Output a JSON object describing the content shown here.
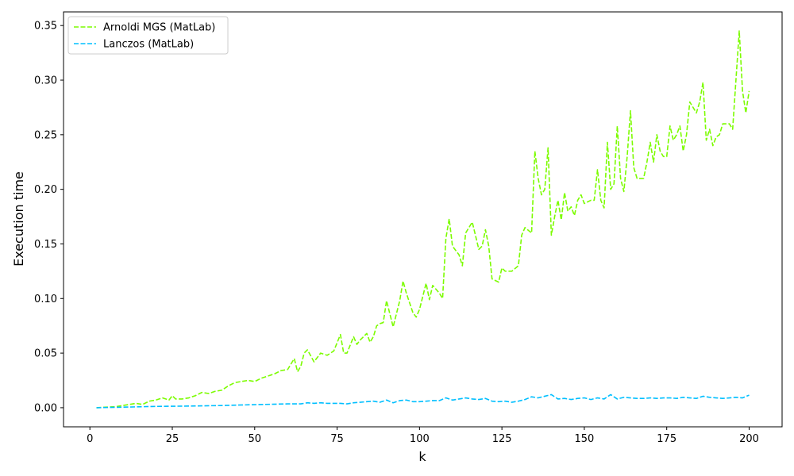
{
  "chart_data": {
    "type": "line",
    "title": "",
    "xlabel": "k",
    "ylabel": "Execution time",
    "xlim": [
      -8,
      210
    ],
    "ylim": [
      -0.0175,
      0.3625
    ],
    "xticks": [
      0,
      25,
      50,
      75,
      100,
      125,
      150,
      175,
      200
    ],
    "xtick_labels": [
      "0",
      "25",
      "50",
      "75",
      "100",
      "125",
      "150",
      "175",
      "200"
    ],
    "yticks": [
      0.0,
      0.05,
      0.1,
      0.15,
      0.2,
      0.25,
      0.3,
      0.35
    ],
    "ytick_labels": [
      "0.00",
      "0.05",
      "0.10",
      "0.15",
      "0.20",
      "0.25",
      "0.30",
      "0.35"
    ],
    "grid": false,
    "legend": "top-left",
    "series": [
      {
        "name": "Arnoldi MGS (MatLab)",
        "color": "#7cfc00",
        "dash": "dashed",
        "x": [
          2,
          5,
          8,
          10,
          12,
          14,
          16,
          18,
          20,
          22,
          24,
          25,
          26,
          28,
          30,
          32,
          34,
          36,
          38,
          40,
          42,
          44,
          46,
          48,
          50,
          52,
          54,
          56,
          58,
          60,
          62,
          63,
          64,
          65,
          66,
          68,
          70,
          72,
          74,
          76,
          77,
          78,
          80,
          81,
          82,
          84,
          85,
          86,
          87,
          88,
          89,
          90,
          91,
          92,
          94,
          95,
          96,
          98,
          99,
          100,
          102,
          103,
          104,
          106,
          107,
          108,
          109,
          110,
          112,
          113,
          114,
          116,
          118,
          119,
          120,
          121,
          122,
          124,
          125,
          126,
          128,
          130,
          131,
          132,
          134,
          135,
          136,
          137,
          138,
          139,
          140,
          141,
          142,
          143,
          144,
          145,
          146,
          147,
          148,
          149,
          150,
          152,
          153,
          154,
          155,
          156,
          157,
          158,
          159,
          160,
          161,
          162,
          163,
          164,
          165,
          166,
          168,
          169,
          170,
          171,
          172,
          173,
          174,
          175,
          176,
          177,
          178,
          179,
          180,
          181,
          182,
          183,
          184,
          185,
          186,
          187,
          188,
          189,
          190,
          191,
          192,
          193,
          194,
          195,
          196,
          197,
          198,
          199,
          200
        ],
        "values": [
          0.0,
          0.0005,
          0.001,
          0.002,
          0.003,
          0.004,
          0.003,
          0.006,
          0.007,
          0.009,
          0.007,
          0.011,
          0.008,
          0.008,
          0.009,
          0.011,
          0.014,
          0.013,
          0.015,
          0.016,
          0.02,
          0.023,
          0.024,
          0.025,
          0.024,
          0.027,
          0.029,
          0.031,
          0.034,
          0.035,
          0.045,
          0.033,
          0.038,
          0.05,
          0.053,
          0.042,
          0.05,
          0.048,
          0.052,
          0.067,
          0.05,
          0.05,
          0.065,
          0.058,
          0.062,
          0.068,
          0.06,
          0.065,
          0.075,
          0.077,
          0.078,
          0.098,
          0.086,
          0.074,
          0.098,
          0.116,
          0.105,
          0.087,
          0.083,
          0.09,
          0.114,
          0.099,
          0.112,
          0.105,
          0.1,
          0.155,
          0.173,
          0.148,
          0.14,
          0.13,
          0.16,
          0.17,
          0.145,
          0.148,
          0.163,
          0.148,
          0.118,
          0.115,
          0.128,
          0.125,
          0.125,
          0.13,
          0.158,
          0.165,
          0.16,
          0.235,
          0.21,
          0.195,
          0.2,
          0.238,
          0.158,
          0.175,
          0.19,
          0.172,
          0.197,
          0.18,
          0.184,
          0.176,
          0.19,
          0.195,
          0.187,
          0.19,
          0.19,
          0.218,
          0.19,
          0.183,
          0.243,
          0.2,
          0.205,
          0.258,
          0.21,
          0.198,
          0.23,
          0.272,
          0.22,
          0.21,
          0.21,
          0.225,
          0.243,
          0.225,
          0.25,
          0.235,
          0.23,
          0.23,
          0.258,
          0.245,
          0.25,
          0.258,
          0.235,
          0.25,
          0.28,
          0.275,
          0.27,
          0.28,
          0.298,
          0.245,
          0.255,
          0.24,
          0.248,
          0.25,
          0.26,
          0.26,
          0.26,
          0.255,
          0.3,
          0.345,
          0.29,
          0.27,
          0.29
        ]
      },
      {
        "name": "Lanczos (MatLab)",
        "color": "#00bfff",
        "dash": "dashed",
        "x": [
          2,
          10,
          20,
          30,
          40,
          50,
          60,
          64,
          66,
          68,
          70,
          72,
          74,
          76,
          78,
          80,
          82,
          84,
          86,
          88,
          90,
          92,
          94,
          96,
          98,
          100,
          102,
          104,
          106,
          108,
          110,
          112,
          114,
          116,
          118,
          120,
          122,
          124,
          126,
          128,
          130,
          132,
          134,
          136,
          138,
          140,
          142,
          144,
          146,
          148,
          150,
          152,
          154,
          156,
          158,
          160,
          162,
          164,
          166,
          168,
          170,
          172,
          174,
          176,
          178,
          180,
          182,
          184,
          186,
          188,
          190,
          192,
          194,
          196,
          198,
          200
        ],
        "values": [
          0.0,
          0.0005,
          0.0012,
          0.0015,
          0.002,
          0.0028,
          0.0035,
          0.0035,
          0.0045,
          0.004,
          0.0045,
          0.004,
          0.004,
          0.004,
          0.0035,
          0.0045,
          0.005,
          0.0055,
          0.006,
          0.005,
          0.007,
          0.0045,
          0.0065,
          0.007,
          0.0055,
          0.0055,
          0.006,
          0.0065,
          0.0065,
          0.009,
          0.007,
          0.008,
          0.009,
          0.008,
          0.0075,
          0.0085,
          0.006,
          0.0055,
          0.006,
          0.005,
          0.006,
          0.0075,
          0.01,
          0.009,
          0.0105,
          0.012,
          0.008,
          0.0085,
          0.0075,
          0.0085,
          0.009,
          0.0075,
          0.009,
          0.008,
          0.012,
          0.008,
          0.0095,
          0.009,
          0.0085,
          0.0085,
          0.009,
          0.0085,
          0.009,
          0.009,
          0.0085,
          0.0095,
          0.009,
          0.0085,
          0.0105,
          0.0095,
          0.009,
          0.0085,
          0.009,
          0.0095,
          0.009,
          0.0115
        ]
      }
    ]
  }
}
